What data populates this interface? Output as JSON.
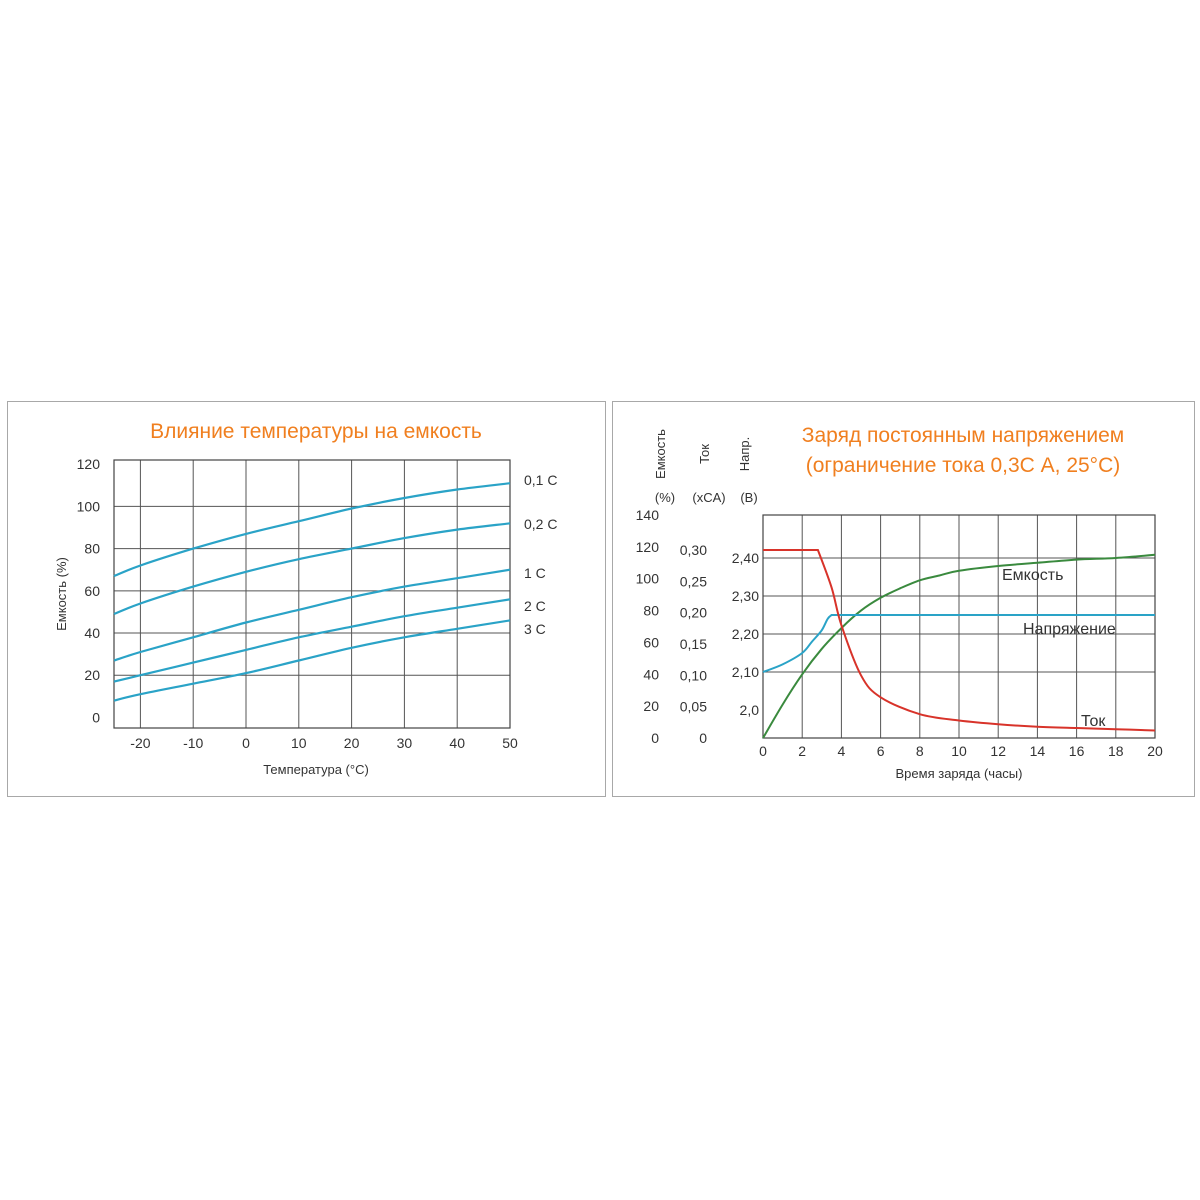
{
  "chart_data": [
    {
      "type": "line",
      "title": "Влияние температуры на емкость",
      "xlabel": "Температура (°С)",
      "ylabel": "Емкость (%)",
      "xlim": [
        -25,
        50
      ],
      "ylim": [
        -5,
        122
      ],
      "grid": true,
      "x_ticks": [
        "-20",
        "-10",
        "0",
        "10",
        "20",
        "30",
        "40",
        "50"
      ],
      "y_ticks": [
        "0",
        "20",
        "40",
        "60",
        "80",
        "100",
        "120"
      ],
      "color": "#2aa3c7",
      "series": [
        {
          "name": "0,1 С",
          "x": [
            -25,
            -20,
            -10,
            0,
            10,
            20,
            30,
            40,
            50
          ],
          "values": [
            67,
            72,
            80,
            87,
            93,
            99,
            104,
            108,
            111
          ]
        },
        {
          "name": "0,2 С",
          "x": [
            -25,
            -20,
            -10,
            0,
            10,
            20,
            30,
            40,
            50
          ],
          "values": [
            49,
            54,
            62,
            69,
            75,
            80,
            85,
            89,
            92
          ]
        },
        {
          "name": "1 С",
          "x": [
            -25,
            -20,
            -10,
            0,
            10,
            20,
            30,
            40,
            50
          ],
          "values": [
            27,
            31,
            38,
            45,
            51,
            57,
            62,
            66,
            70
          ]
        },
        {
          "name": "2 С",
          "x": [
            -25,
            -20,
            -10,
            0,
            10,
            20,
            30,
            40,
            50
          ],
          "values": [
            17,
            20,
            26,
            32,
            38,
            43,
            48,
            52,
            56
          ]
        },
        {
          "name": "3 С",
          "x": [
            -25,
            -20,
            -10,
            0,
            10,
            20,
            30,
            40,
            50
          ],
          "values": [
            8,
            11,
            16,
            21,
            27,
            33,
            38,
            42,
            46
          ]
        }
      ]
    },
    {
      "type": "line",
      "title": [
        "Заряд постоянным напряжением",
        "(ограничение тока 0,3С А, 25°С)"
      ],
      "xlabel": "Время заряда (часы)",
      "axes": [
        {
          "label": "Емкость",
          "unit": "(%)",
          "ticks": [
            "0",
            "20",
            "40",
            "60",
            "80",
            "100",
            "120",
            "140"
          ]
        },
        {
          "label": "Ток",
          "unit": "(xCA)",
          "ticks": [
            "0",
            "0,05",
            "0,10",
            "0,15",
            "0,20",
            "0,25",
            "0,30"
          ]
        },
        {
          "label": "Напр.",
          "unit": "(В)",
          "ticks": [
            "2,0",
            "2,10",
            "2,20",
            "2,30",
            "2,40"
          ]
        }
      ],
      "xlim": [
        0,
        20
      ],
      "grid": true,
      "x_ticks": [
        "0",
        "2",
        "4",
        "6",
        "8",
        "10",
        "12",
        "14",
        "16",
        "18",
        "20"
      ],
      "series": [
        {
          "name": "Емкость",
          "color": "#3a8a3e",
          "axis": "Емкость (%)",
          "x": [
            0,
            1,
            2,
            3,
            4,
            5,
            6,
            7,
            8,
            9,
            10,
            12,
            14,
            16,
            18,
            20
          ],
          "values": [
            0,
            21,
            40,
            56,
            69,
            80,
            88,
            94,
            99,
            102,
            105,
            108,
            110,
            112,
            113,
            115
          ]
        },
        {
          "name": "Напряжение",
          "color": "#2aa3c7",
          "axis": "Напр. (В)",
          "x": [
            0,
            1,
            2,
            2.5,
            3,
            3.3,
            3.5,
            20
          ],
          "values": [
            2.1,
            2.12,
            2.15,
            2.18,
            2.21,
            2.24,
            2.25,
            2.25
          ]
        },
        {
          "name": "Ток",
          "color": "#d8332a",
          "axis": "Ток (xCA)",
          "x": [
            0,
            2.8,
            3.5,
            4,
            5,
            6,
            8,
            10,
            12,
            14,
            16,
            18,
            20
          ],
          "values": [
            0.3,
            0.3,
            0.24,
            0.18,
            0.1,
            0.065,
            0.038,
            0.028,
            0.022,
            0.018,
            0.016,
            0.014,
            0.012
          ]
        }
      ]
    }
  ]
}
